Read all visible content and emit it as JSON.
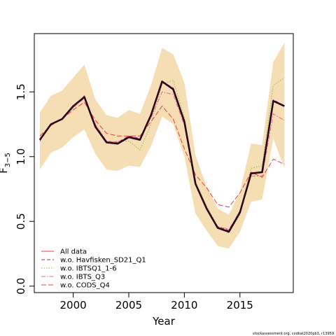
{
  "chart_data": {
    "type": "line",
    "xlabel": "Year",
    "ylabel": "F",
    "ylabel_subscript": "3−5",
    "xlim": [
      1996.5,
      2019.8
    ],
    "ylim": [
      -0.05,
      1.95
    ],
    "xticks": [
      2000,
      2005,
      2010,
      2015
    ],
    "yticks": [
      0.0,
      0.5,
      1.0,
      1.5
    ],
    "ytick_labels": [
      "0.0",
      "0.5",
      "1.0",
      "1.5"
    ],
    "x": [
      1997,
      1998,
      1999,
      2000,
      2001,
      2002,
      2003,
      2004,
      2005,
      2006,
      2007,
      2008,
      2009,
      2010,
      2011,
      2012,
      2013,
      2014,
      2015,
      2016,
      2017,
      2018,
      2019
    ],
    "band": {
      "color": "#f5deb3",
      "lower": [
        0.9,
        1.03,
        1.07,
        1.15,
        1.21,
        1.02,
        0.9,
        0.89,
        0.93,
        0.92,
        1.08,
        1.31,
        1.25,
        1.0,
        0.56,
        0.43,
        0.31,
        0.29,
        0.42,
        0.65,
        0.67,
        1.14,
        0.91
      ],
      "upper": [
        1.34,
        1.47,
        1.51,
        1.61,
        1.71,
        1.44,
        1.32,
        1.3,
        1.36,
        1.33,
        1.55,
        1.84,
        1.79,
        1.57,
        1.01,
        0.77,
        0.6,
        0.55,
        0.73,
        1.1,
        1.09,
        1.73,
        1.88
      ]
    },
    "main_series": {
      "color": "#2a0a1e",
      "values": [
        1.13,
        1.25,
        1.29,
        1.39,
        1.46,
        1.23,
        1.11,
        1.1,
        1.15,
        1.13,
        1.32,
        1.58,
        1.52,
        1.27,
        0.79,
        0.6,
        0.45,
        0.42,
        0.57,
        0.87,
        0.88,
        1.43,
        1.39
      ]
    },
    "series": [
      {
        "name": "All data",
        "color": "#e8403a",
        "dash": "",
        "values": [
          1.13,
          1.25,
          1.29,
          1.39,
          1.46,
          1.23,
          1.11,
          1.1,
          1.15,
          1.13,
          1.32,
          1.58,
          1.52,
          1.27,
          0.79,
          0.6,
          0.45,
          0.42,
          0.57,
          0.87,
          0.88,
          1.43,
          1.39
        ]
      },
      {
        "name": "w.o. Havfisken_SD21_Q1",
        "color": "#b5236b",
        "dash": "5,3",
        "values": [
          1.12,
          1.25,
          1.29,
          1.38,
          1.47,
          1.24,
          1.12,
          1.11,
          1.16,
          1.14,
          1.33,
          1.58,
          1.53,
          1.27,
          0.79,
          0.6,
          0.46,
          0.43,
          0.58,
          0.87,
          0.88,
          1.44,
          1.39
        ]
      },
      {
        "name": "w.o. IBTSQ1_1-6",
        "color": "#8dbf3f",
        "dash": "1.5,2",
        "values": [
          1.13,
          1.25,
          1.29,
          1.37,
          1.47,
          1.24,
          1.11,
          1.12,
          1.12,
          1.05,
          1.25,
          1.56,
          1.59,
          1.3,
          0.8,
          0.62,
          0.46,
          0.41,
          0.55,
          0.91,
          0.93,
          1.55,
          1.61
        ]
      },
      {
        "name": "w.o. IBTS_Q3",
        "color": "#f0609a",
        "dash": "6,2,1.5,2",
        "values": [
          1.13,
          1.25,
          1.29,
          1.38,
          1.45,
          1.25,
          1.12,
          1.11,
          1.15,
          1.14,
          1.3,
          1.5,
          1.48,
          1.24,
          0.78,
          0.6,
          0.46,
          0.44,
          0.57,
          0.85,
          0.85,
          1.33,
          1.28
        ]
      },
      {
        "name": "w.o. CODS_Q4",
        "color": "#f03c3c",
        "dash": "7,3",
        "values": [
          1.16,
          1.24,
          1.29,
          1.36,
          1.42,
          1.28,
          1.18,
          1.16,
          1.16,
          1.16,
          1.27,
          1.39,
          1.29,
          1.06,
          0.86,
          0.76,
          0.63,
          0.61,
          0.72,
          0.88,
          0.84,
          0.98,
          0.94
        ]
      }
    ]
  },
  "footer": "stockassessment.org, codkat2020pb3, r13959"
}
